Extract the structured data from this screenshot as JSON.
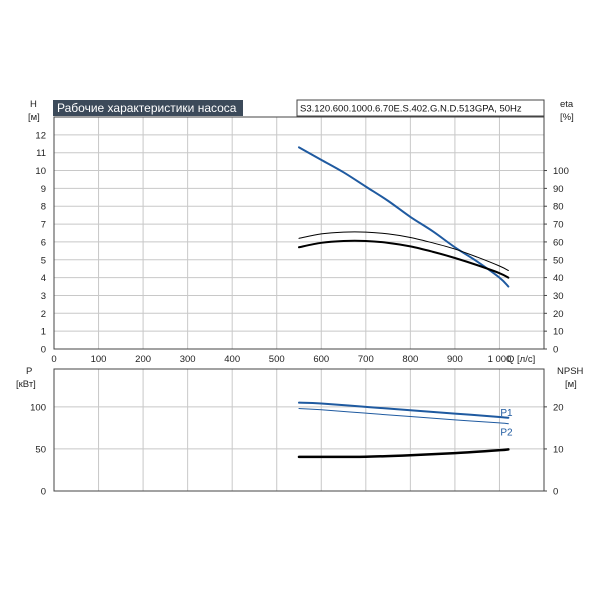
{
  "title": "Рабочие характеристики насоса",
  "model": "S3.120.600.1000.6.70E.S.402.G.N.D.513GPA, 50Hz",
  "colors": {
    "blue": "#1f5aa0",
    "black": "#000000",
    "grid": "#c8c8c8",
    "title_bg": "#3c4a5a"
  },
  "chart_data": [
    {
      "type": "line",
      "title": "Рабочие характеристики насоса",
      "x_axis": {
        "label": "Q [л/с]",
        "range": [
          0,
          1100
        ],
        "ticks": [
          0,
          100,
          200,
          300,
          400,
          500,
          600,
          700,
          800,
          900,
          1000
        ],
        "tick_labels": [
          "0",
          "100",
          "200",
          "300",
          "400",
          "500",
          "600",
          "700",
          "800",
          "900",
          "1 000"
        ]
      },
      "y_left": {
        "label": "H",
        "unit": "[м]",
        "range": [
          0,
          13
        ],
        "ticks": [
          0,
          1,
          2,
          3,
          4,
          5,
          6,
          7,
          8,
          9,
          10,
          11,
          12
        ]
      },
      "y_right": {
        "label": "eta",
        "unit": "[%]",
        "range": [
          0,
          130
        ],
        "ticks": [
          0,
          10,
          20,
          30,
          40,
          50,
          60,
          70,
          80,
          90,
          100
        ]
      },
      "grid": true,
      "series": [
        {
          "axis": "left",
          "color": "#1f5aa0",
          "width": 2,
          "x": [
            550,
            600,
            650,
            700,
            750,
            800,
            850,
            900,
            950,
            1000,
            1020
          ],
          "y": [
            11.3,
            10.6,
            9.9,
            9.1,
            8.3,
            7.4,
            6.6,
            5.7,
            4.9,
            4.0,
            3.5
          ]
        },
        {
          "axis": "right",
          "color": "#000000",
          "width": 1,
          "x": [
            550,
            600,
            650,
            700,
            750,
            800,
            850,
            900,
            950,
            1000,
            1020
          ],
          "y": [
            62,
            64.5,
            65.5,
            65.5,
            64.5,
            62.5,
            59.5,
            56,
            51.5,
            46.5,
            44
          ]
        },
        {
          "axis": "right",
          "color": "#000000",
          "width": 2,
          "x": [
            550,
            600,
            650,
            700,
            750,
            800,
            850,
            900,
            950,
            1000,
            1020
          ],
          "y": [
            57,
            59.5,
            60.5,
            60.5,
            59.5,
            57.5,
            54.5,
            51,
            47,
            42.5,
            40
          ]
        }
      ]
    },
    {
      "type": "line",
      "x_axis": {
        "range": [
          0,
          1100
        ],
        "ticks": [
          0,
          100,
          200,
          300,
          400,
          500,
          600,
          700,
          800,
          900,
          1000
        ]
      },
      "y_left": {
        "label": "P",
        "unit": "[кВт]",
        "range": [
          0,
          145
        ],
        "ticks": [
          0,
          50,
          100
        ]
      },
      "y_right": {
        "label": "NPSH",
        "unit": "[м]",
        "range": [
          0,
          29
        ],
        "ticks": [
          0,
          10,
          20
        ]
      },
      "grid": true,
      "series": [
        {
          "name": "P1",
          "axis": "left",
          "color": "#1f5aa0",
          "width": 2,
          "x": [
            550,
            600,
            700,
            800,
            900,
            1000,
            1020
          ],
          "y": [
            105,
            104,
            100,
            96,
            92,
            88,
            87
          ]
        },
        {
          "name": "P2",
          "axis": "left",
          "color": "#1f5aa0",
          "width": 1,
          "x": [
            550,
            600,
            700,
            800,
            900,
            1000,
            1020
          ],
          "y": [
            98,
            96.5,
            92.5,
            88.5,
            84.5,
            81,
            80
          ]
        },
        {
          "axis": "right",
          "color": "#000000",
          "width": 2.5,
          "x": [
            550,
            600,
            700,
            800,
            900,
            1000,
            1020
          ],
          "y": [
            8.1,
            8.1,
            8.15,
            8.5,
            9.0,
            9.7,
            9.9
          ]
        }
      ]
    }
  ]
}
